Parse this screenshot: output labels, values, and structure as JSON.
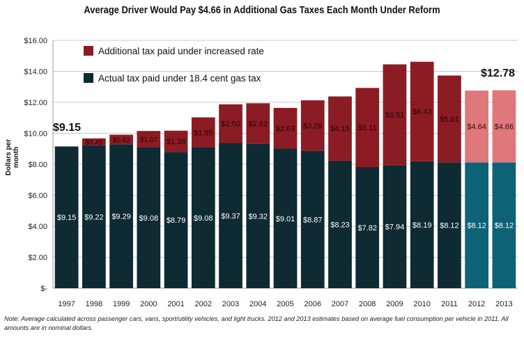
{
  "title": "Average Driver Would Pay $4.66 in Additional Gas Taxes Each Month Under Reform",
  "ylabel": "Dollars per month",
  "note": "Note: Average calculated across passenger cars, vans, sport/utility vehicles, and light trucks.  2012 and 2013 estimates based on average fuel consumption per vehicle in 2011.  All amounts are in nominal dollars.",
  "callouts": {
    "first": "$9.15",
    "last": "$12.78"
  },
  "colors": {
    "base": "#0e2a33",
    "additional": "#8b1c23",
    "base_projected": "#0e6275",
    "additional_projected": "#e0777b"
  },
  "chart_data": {
    "type": "bar",
    "stacked": true,
    "categories": [
      "1997",
      "1998",
      "1999",
      "2000",
      "2001",
      "2002",
      "2003",
      "2004",
      "2005",
      "2006",
      "2007",
      "2008",
      "2009",
      "2010",
      "2011",
      "2012",
      "2013"
    ],
    "series": [
      {
        "name": "Actual tax paid under 18.4 cent gas tax",
        "values": [
          9.15,
          9.22,
          9.29,
          9.08,
          8.79,
          9.08,
          9.37,
          9.32,
          9.01,
          8.87,
          8.23,
          7.82,
          7.94,
          8.19,
          8.12,
          8.12,
          8.12
        ],
        "labels": [
          "$9.15",
          "$9.22",
          "$9.29",
          "$9.08",
          "$8.79",
          "$9.08",
          "$9.37",
          "$9.32",
          "$9.01",
          "$8.87",
          "$8.23",
          "$7.82",
          "$7.94",
          "$8.19",
          "$8.12",
          "$8.12",
          "$8.12"
        ]
      },
      {
        "name": "Additional tax paid under increased rate",
        "values": [
          0,
          0.45,
          0.62,
          1.07,
          1.38,
          1.95,
          2.5,
          2.62,
          2.63,
          3.26,
          4.15,
          5.11,
          6.51,
          6.43,
          5.61,
          4.64,
          4.66
        ],
        "labels": [
          "",
          "$0.45",
          "$0.62",
          "$1.07",
          "$1.38",
          "$1.95",
          "$2.50",
          "$2.62",
          "$2.63",
          "$3.26",
          "$4.15",
          "$5.11",
          "$6.51",
          "$6.43",
          "$5.61",
          "$4.64",
          "$4.66"
        ]
      }
    ],
    "projected_categories": [
      "2012",
      "2013"
    ],
    "yticks": [
      "$-",
      "$2.00",
      "$4.00",
      "$6.00",
      "$8.00",
      "$10.00",
      "$12.00",
      "$14.00",
      "$16.00"
    ],
    "ylim": [
      0,
      16
    ],
    "grid": true,
    "legend": "top-left"
  }
}
